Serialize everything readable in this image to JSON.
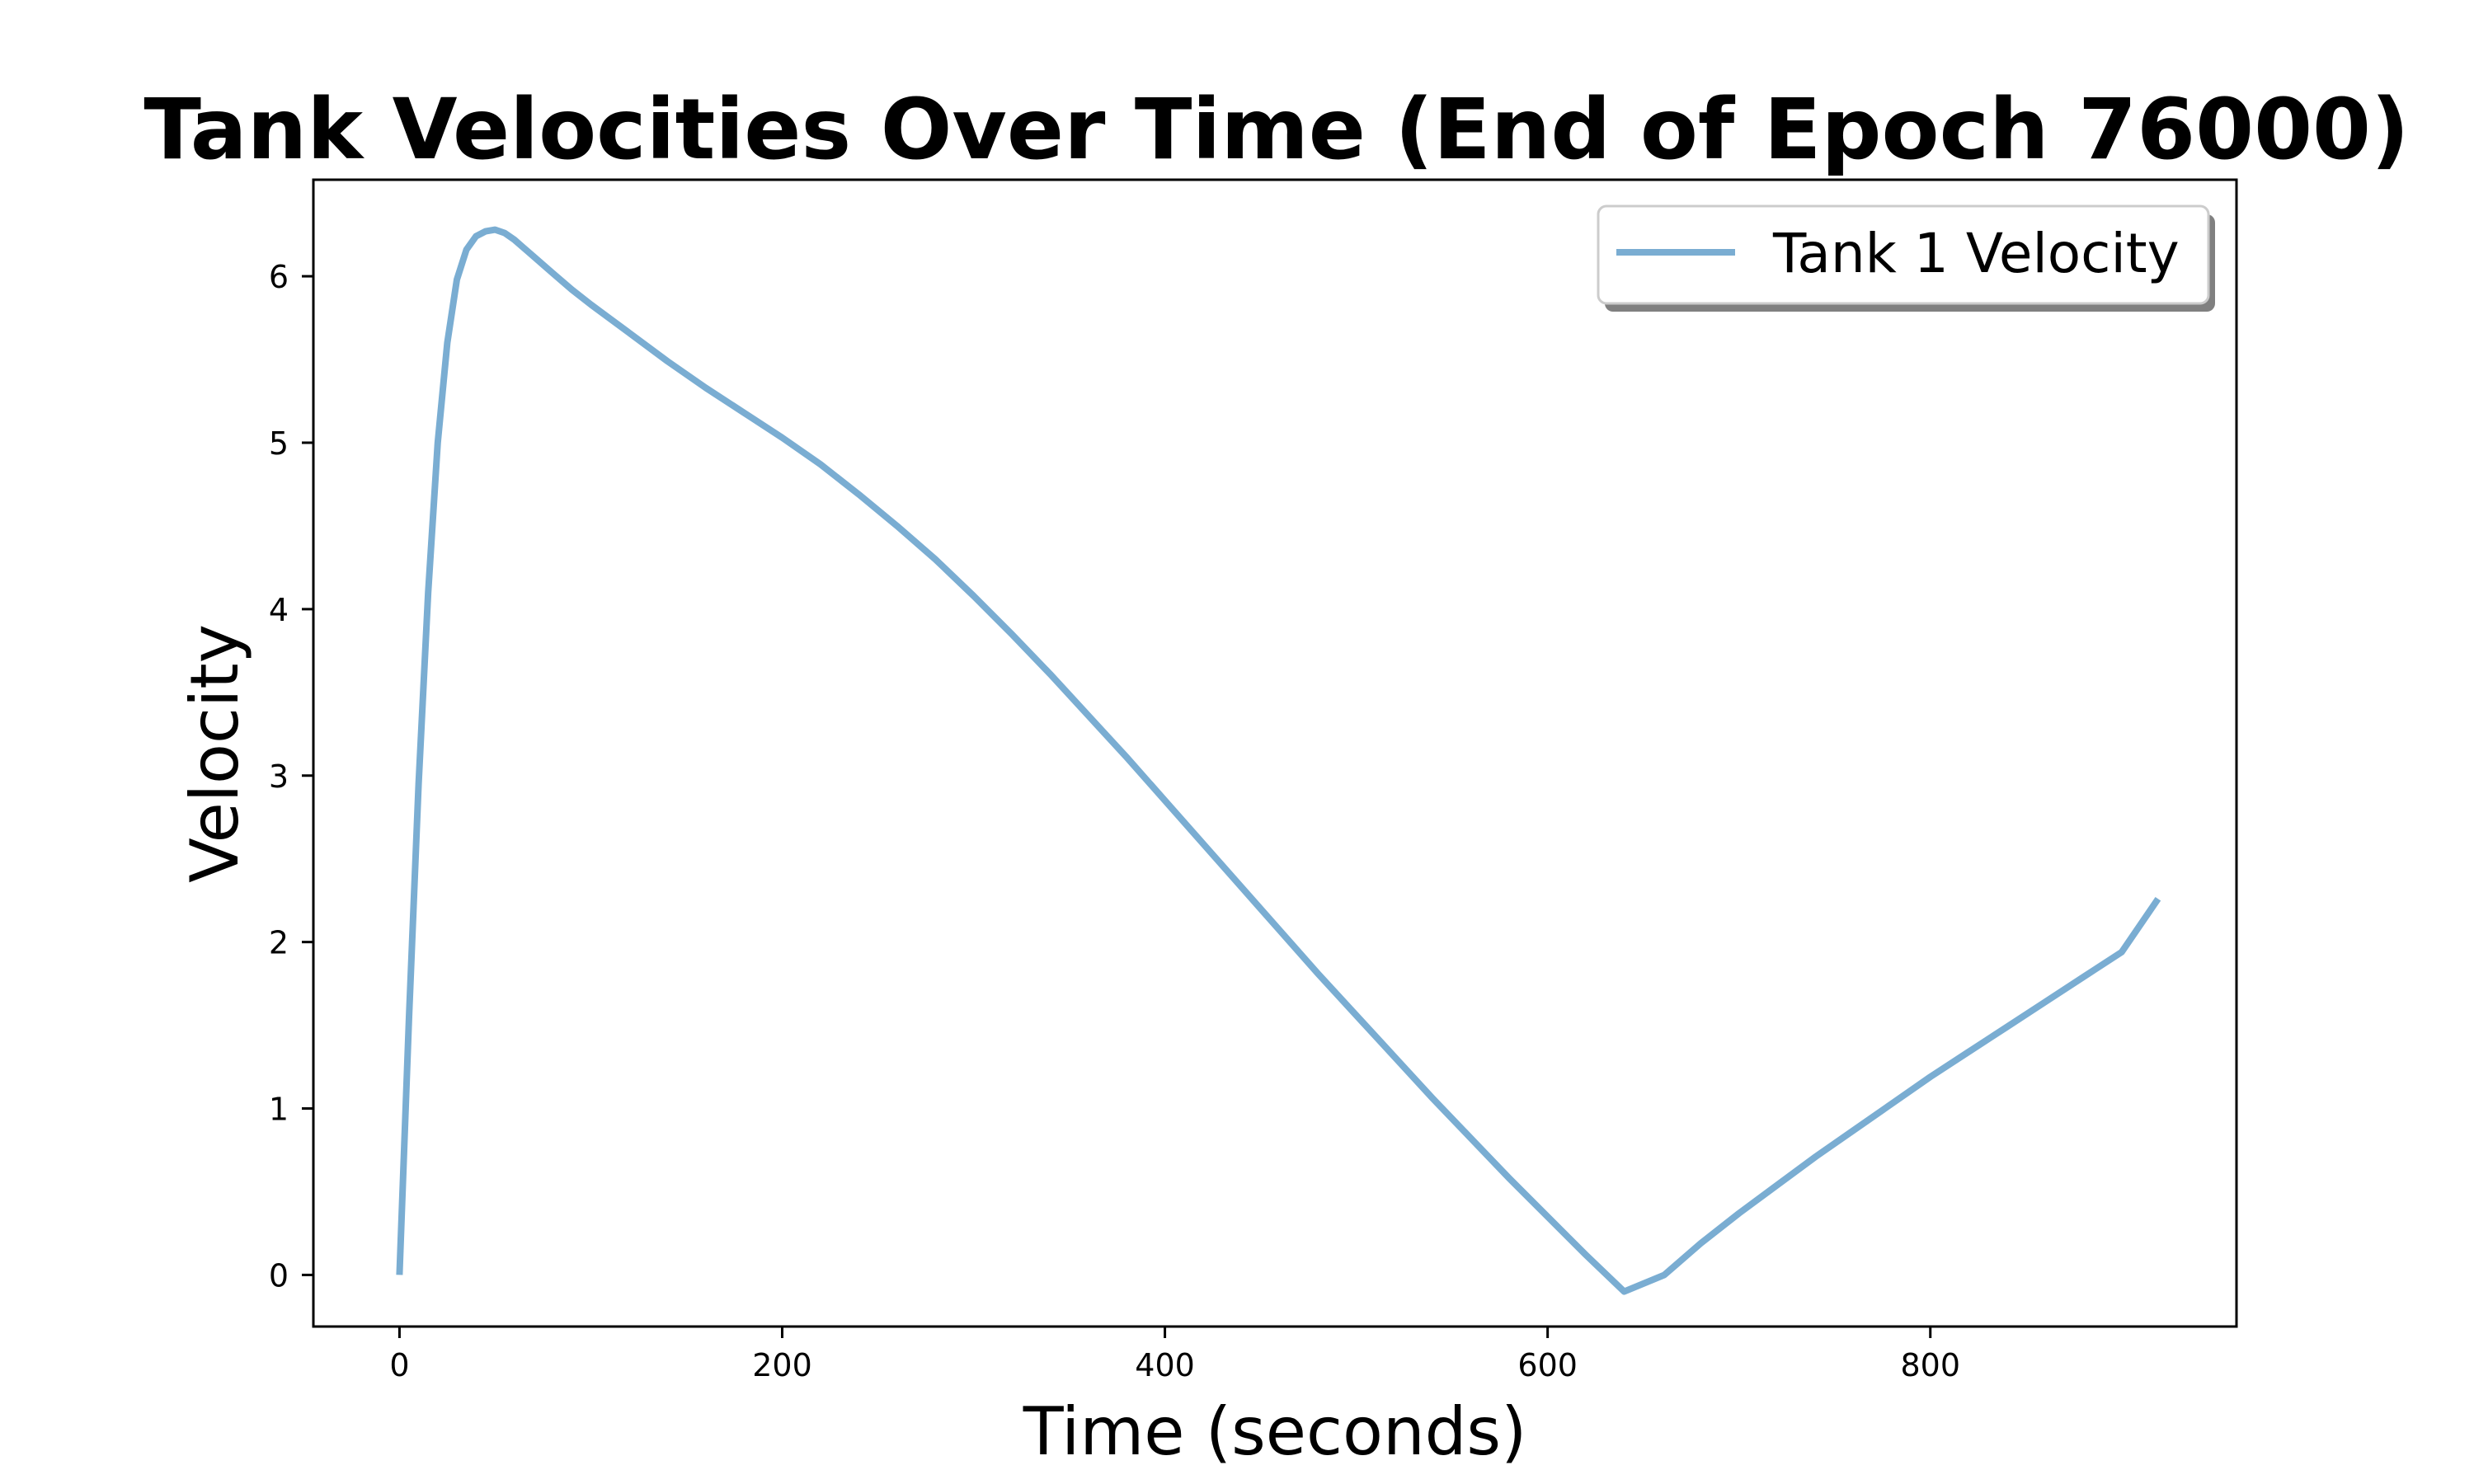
{
  "chart_data": {
    "type": "line",
    "title": "Tank Velocities Over Time (End of Epoch 76000)",
    "xlabel": "Time (seconds)",
    "ylabel": "Velocity",
    "xlim": [
      -45,
      960
    ],
    "ylim": [
      -0.31,
      6.58
    ],
    "xticks": [
      0,
      200,
      400,
      600,
      800
    ],
    "yticks": [
      0,
      1,
      2,
      3,
      4,
      5,
      6
    ],
    "grid": false,
    "legend_position": "top-right",
    "series": [
      {
        "name": "Tank 1 Velocity",
        "color": "#7aadd2",
        "x": [
          0,
          5,
          10,
          15,
          20,
          25,
          30,
          35,
          40,
          45,
          50,
          55,
          60,
          70,
          80,
          90,
          100,
          120,
          140,
          160,
          180,
          200,
          220,
          240,
          260,
          280,
          300,
          320,
          340,
          360,
          380,
          400,
          420,
          440,
          460,
          480,
          500,
          520,
          540,
          560,
          580,
          600,
          620,
          640,
          661,
          680,
          700,
          720,
          740,
          760,
          780,
          800,
          820,
          840,
          860,
          880,
          900,
          919
        ],
        "values": [
          0,
          1.55,
          2.95,
          4.1,
          5.0,
          5.6,
          5.98,
          6.16,
          6.24,
          6.27,
          6.28,
          6.26,
          6.22,
          6.12,
          6.02,
          5.92,
          5.83,
          5.66,
          5.49,
          5.33,
          5.18,
          5.03,
          4.87,
          4.69,
          4.5,
          4.3,
          4.08,
          3.85,
          3.61,
          3.36,
          3.11,
          2.85,
          2.59,
          2.33,
          2.07,
          1.81,
          1.56,
          1.31,
          1.06,
          0.82,
          0.58,
          0.35,
          0.12,
          -0.1,
          0.0,
          0.19,
          0.37,
          0.54,
          0.71,
          0.87,
          1.03,
          1.19,
          1.34,
          1.49,
          1.64,
          1.79,
          1.94,
          2.26
        ]
      }
    ]
  }
}
